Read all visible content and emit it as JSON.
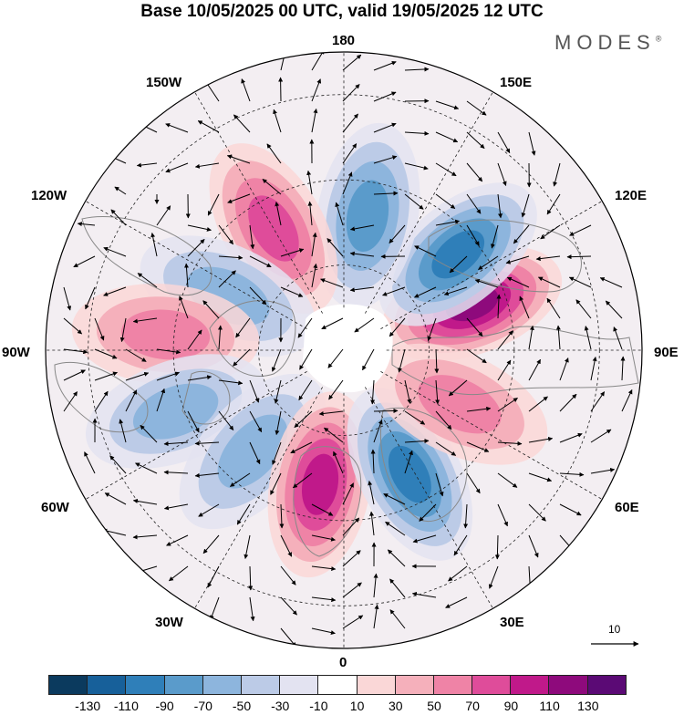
{
  "title": "Base 10/05/2025 00 UTC, valid 19/05/2025 12 UTC",
  "brand": "MODES",
  "brand_mark": "®",
  "longitude_labels": {
    "lon_180": "180",
    "lon_150e": "150E",
    "lon_120e": "120E",
    "lon_90e": "90E",
    "lon_60e": "60E",
    "lon_30e": "30E",
    "lon_0": "0",
    "lon_30w": "30W",
    "lon_60w": "60W",
    "lon_90w": "90W",
    "lon_120w": "120W",
    "lon_150w": "150W"
  },
  "wind_scale_label": "10",
  "colorbar": {
    "colors": [
      "#0b3a5e",
      "#17609a",
      "#2f7fb9",
      "#5a9bcb",
      "#8db5dd",
      "#bccbe7",
      "#e3e3f1",
      "#ffffff",
      "#fad7d7",
      "#f5b0bb",
      "#ef83a6",
      "#df4c9a",
      "#c0198a",
      "#8e0a7c",
      "#5b0a75"
    ],
    "ticks": [
      "-130",
      "-110",
      "-90",
      "-70",
      "-50",
      "-30",
      "-10",
      "10",
      "30",
      "50",
      "70",
      "90",
      "110",
      "130"
    ]
  },
  "map_data": {
    "field": "500 hPa geopotential height anomaly (shaded) with wind vectors",
    "anomalies": [
      {
        "lon_deg": 110,
        "lat": 58,
        "value": 110
      },
      {
        "lon_deg": 130,
        "lat": 55,
        "value": -90
      },
      {
        "lon_deg": 170,
        "lat": 58,
        "value": -60
      },
      {
        "lon_deg": -150,
        "lat": 57,
        "value": 60
      },
      {
        "lon_deg": -115,
        "lat": 60,
        "value": -50
      },
      {
        "lon_deg": -95,
        "lat": 48,
        "value": 50
      },
      {
        "lon_deg": -70,
        "lat": 48,
        "value": -40
      },
      {
        "lon_deg": -42,
        "lat": 58,
        "value": -40
      },
      {
        "lon_deg": -10,
        "lat": 58,
        "value": 90
      },
      {
        "lon_deg": 28,
        "lat": 57,
        "value": -80
      },
      {
        "lon_deg": 65,
        "lat": 60,
        "value": 40
      }
    ]
  }
}
